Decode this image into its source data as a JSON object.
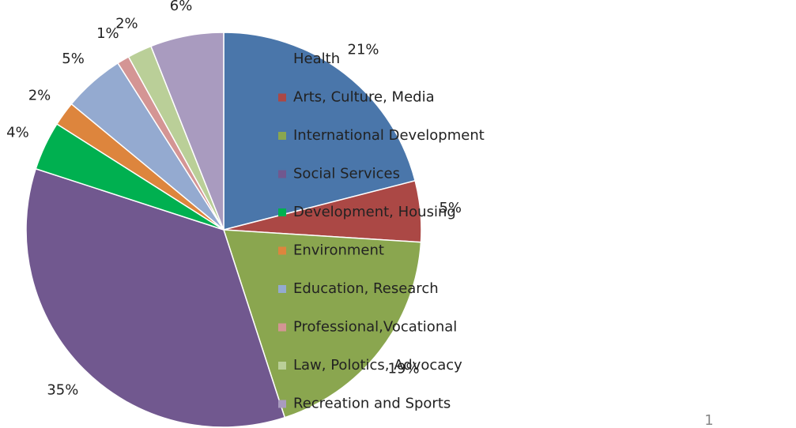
{
  "chart_data": {
    "type": "pie",
    "categories": [
      "Health",
      "Arts, Culture, Media",
      "International Development",
      "Social Services",
      "Development, Housing",
      "Environment",
      "Education, Research",
      "Professional,Vocational",
      "Law, Polotics, Advocacy",
      "Recreation and Sports"
    ],
    "values": [
      21,
      5,
      19,
      35,
      4,
      2,
      5,
      1,
      2,
      6
    ],
    "value_labels": [
      "21%",
      "5%",
      "19%",
      "35%",
      "4%",
      "2%",
      "5%",
      "1%",
      "2%",
      "6%"
    ],
    "colors": [
      "#4a76aa",
      "#ab4845",
      "#8aa64f",
      "#71588f",
      "#00b050",
      "#dd853d",
      "#94aad0",
      "#d49594",
      "#bacf98",
      "#a99bbf"
    ],
    "legend": "right"
  },
  "slide_number": "1"
}
